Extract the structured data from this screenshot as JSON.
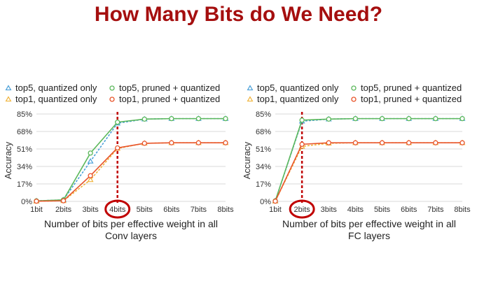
{
  "title": "How Many Bits do We Need?",
  "colors": {
    "title": "#a50f0f",
    "top5_quant": "#4aa0d8",
    "top5_pruned": "#5cb85c",
    "top1_quant": "#f0b43c",
    "top1_pruned": "#e8542a",
    "marker": "#c00000"
  },
  "chart_data": [
    {
      "type": "line",
      "categories": [
        "1bit",
        "2bits",
        "3bits",
        "4bits",
        "5bits",
        "6bits",
        "7bits",
        "8bits"
      ],
      "ylabel": "Accuracy",
      "xlabel_lines": [
        "Number of bits per effective weight in all",
        "Conv layers"
      ],
      "yticks": [
        "0%",
        "17%",
        "34%",
        "51%",
        "68%",
        "85%"
      ],
      "ylim": [
        0,
        85
      ],
      "grid": true,
      "highlight_category": "4bits",
      "series": [
        {
          "name": "top5, quantized only",
          "values": [
            0.5,
            1.5,
            39,
            76,
            80,
            80.5,
            80.5,
            80.5
          ],
          "color_key": "top5_quant",
          "dashed": true,
          "marker": "triangle"
        },
        {
          "name": "top5, pruned + quantized",
          "values": [
            0.5,
            1.5,
            47,
            77,
            80,
            80.5,
            80.5,
            80.5
          ],
          "color_key": "top5_pruned",
          "dashed": false,
          "marker": "circle"
        },
        {
          "name": "top1, quantized only",
          "values": [
            0.2,
            0.6,
            21,
            51.5,
            56.5,
            57,
            57,
            57
          ],
          "color_key": "top1_quant",
          "dashed": true,
          "marker": "triangle"
        },
        {
          "name": "top1, pruned + quantized",
          "values": [
            0.2,
            0.6,
            25,
            52,
            56.5,
            57,
            57,
            57
          ],
          "color_key": "top1_pruned",
          "dashed": false,
          "marker": "circle"
        }
      ]
    },
    {
      "type": "line",
      "categories": [
        "1bit",
        "2bits",
        "3bits",
        "4bits",
        "5bits",
        "6bits",
        "7bits",
        "8bits"
      ],
      "ylabel": "Accuracy",
      "xlabel_lines": [
        "Number of bits per effective weight in all",
        "FC layers"
      ],
      "yticks": [
        "0%",
        "17%",
        "34%",
        "51%",
        "68%",
        "85%"
      ],
      "ylim": [
        0,
        85
      ],
      "grid": true,
      "highlight_category": "2bits",
      "series": [
        {
          "name": "top5, quantized only",
          "values": [
            0.5,
            78,
            80,
            80.5,
            80.5,
            80.5,
            80.5,
            80.5
          ],
          "color_key": "top5_quant",
          "dashed": true,
          "marker": "triangle"
        },
        {
          "name": "top5, pruned + quantized",
          "values": [
            0.5,
            79,
            80,
            80.5,
            80.5,
            80.5,
            80.5,
            80.5
          ],
          "color_key": "top5_pruned",
          "dashed": false,
          "marker": "circle"
        },
        {
          "name": "top1, quantized only",
          "values": [
            0.2,
            53.5,
            56.5,
            57,
            57,
            57,
            57,
            57
          ],
          "color_key": "top1_quant",
          "dashed": true,
          "marker": "triangle"
        },
        {
          "name": "top1, pruned + quantized",
          "values": [
            0.2,
            55.5,
            57,
            57,
            57,
            57,
            57,
            57
          ],
          "color_key": "top1_pruned",
          "dashed": false,
          "marker": "circle"
        }
      ]
    }
  ]
}
